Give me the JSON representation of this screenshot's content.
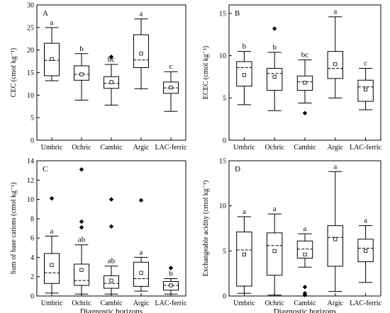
{
  "chart_data": [
    {
      "type": "box",
      "panel_label": "A",
      "ylabel": "CEC (cmol kg⁻¹)",
      "xlabel": "",
      "ylim": [
        0,
        30
      ],
      "yticks": [
        0,
        5,
        10,
        15,
        20,
        25,
        30
      ],
      "categories": [
        "Umbric",
        "Ochric",
        "Cambic",
        "Argic",
        "LAC-ferric"
      ],
      "boxes": [
        {
          "category": "Umbric",
          "whisker_low": 13.2,
          "q1": 14.3,
          "median": 17.7,
          "q3": 21.5,
          "whisker_high": 25.0,
          "mean": 18.0,
          "outliers": [],
          "letter": "a"
        },
        {
          "category": "Ochric",
          "whisker_low": 8.9,
          "q1": 13.3,
          "median": 14.6,
          "q3": 16.5,
          "whisker_high": 19.2,
          "mean": 14.6,
          "outliers": [],
          "letter": "b"
        },
        {
          "category": "Cambic",
          "whisker_low": 7.8,
          "q1": 11.5,
          "median": 12.6,
          "q3": 14.1,
          "whisker_high": 16.8,
          "mean": 12.9,
          "outliers": [
            18.5
          ],
          "letter": "bc"
        },
        {
          "category": "Argic",
          "whisker_low": 11.4,
          "q1": 16.1,
          "median": 17.8,
          "q3": 23.4,
          "whisker_high": 26.9,
          "mean": 19.2,
          "outliers": [],
          "letter": "a"
        },
        {
          "category": "LAC-ferric",
          "whisker_low": 6.4,
          "q1": 10.4,
          "median": 11.6,
          "q3": 12.9,
          "whisker_high": 15.2,
          "mean": 11.7,
          "outliers": [],
          "letter": "c"
        }
      ]
    },
    {
      "type": "box",
      "panel_label": "B",
      "ylabel": "ECEC (cmol kg⁻¹)",
      "xlabel": "",
      "ylim": [
        0,
        16
      ],
      "yticks": [
        0,
        5,
        10,
        15
      ],
      "categories": [
        "Umbric",
        "Ochric",
        "Cambic",
        "Argic",
        "LAC-ferric"
      ],
      "boxes": [
        {
          "category": "Umbric",
          "whisker_low": 4.2,
          "q1": 6.4,
          "median": 8.6,
          "q3": 9.3,
          "whisker_high": 10.5,
          "mean": 7.7,
          "outliers": [],
          "letter": "b"
        },
        {
          "category": "Ochric",
          "whisker_low": 3.5,
          "q1": 5.9,
          "median": 7.9,
          "q3": 8.5,
          "whisker_high": 10.4,
          "mean": 7.5,
          "outliers": [
            13.2
          ],
          "letter": "b"
        },
        {
          "category": "Cambic",
          "whisker_low": 4.4,
          "q1": 5.9,
          "median": 6.9,
          "q3": 7.6,
          "whisker_high": 9.5,
          "mean": 6.8,
          "outliers": [
            3.2
          ],
          "letter": "bc"
        },
        {
          "category": "Argic",
          "whisker_low": 5.0,
          "q1": 7.3,
          "median": 8.5,
          "q3": 10.5,
          "whisker_high": 14.6,
          "mean": 9.0,
          "outliers": [],
          "letter": "a"
        },
        {
          "category": "LAC-ferric",
          "whisker_low": 3.6,
          "q1": 4.6,
          "median": 6.3,
          "q3": 7.1,
          "whisker_high": 8.5,
          "mean": 6.0,
          "outliers": [],
          "letter": "c"
        }
      ]
    },
    {
      "type": "box",
      "panel_label": "C",
      "ylabel": "Sum of base cations (cmol kg⁻¹)",
      "xlabel": "Diagnostic horizons",
      "ylim": [
        0,
        14
      ],
      "yticks": [
        0,
        2,
        4,
        6,
        8,
        10,
        12,
        14
      ],
      "categories": [
        "Umbric",
        "Ochric",
        "Cambic",
        "Argic",
        "LAC-ferric"
      ],
      "boxes": [
        {
          "category": "Umbric",
          "whisker_low": 0.3,
          "q1": 1.3,
          "median": 2.4,
          "q3": 4.4,
          "whisker_high": 6.2,
          "mean": 3.2,
          "outliers": [
            10.1
          ],
          "letter": "a"
        },
        {
          "category": "Ochric",
          "whisker_low": 0.2,
          "q1": 1.1,
          "median": 1.6,
          "q3": 3.3,
          "whisker_high": 5.3,
          "mean": 2.7,
          "outliers": [
            7.1,
            7.7,
            13.1
          ],
          "letter": "ab"
        },
        {
          "category": "Cambic",
          "whisker_low": 0.2,
          "q1": 0.8,
          "median": 1.3,
          "q3": 2.1,
          "whisker_high": 3.1,
          "mean": 1.6,
          "outliers": [
            7.2,
            10.0
          ],
          "letter": "ab"
        },
        {
          "category": "Argic",
          "whisker_low": 0.5,
          "q1": 1.0,
          "median": 1.8,
          "q3": 3.5,
          "whisker_high": 4.0,
          "mean": 2.4,
          "outliers": [
            9.9
          ],
          "letter": "a"
        },
        {
          "category": "LAC-ferric",
          "whisker_low": 0.2,
          "q1": 0.6,
          "median": 1.1,
          "q3": 1.5,
          "whisker_high": 1.8,
          "mean": 1.1,
          "outliers": [
            2.9
          ],
          "letter": "b"
        }
      ]
    },
    {
      "type": "box",
      "panel_label": "D",
      "ylabel": "Exchangeable acidity (cmol kg⁻¹)",
      "xlabel": "Diagnostic horizons",
      "ylim": [
        0,
        15
      ],
      "yticks": [
        0,
        5,
        10,
        15
      ],
      "categories": [
        "Umbric",
        "Ochric",
        "Cambic",
        "Argic",
        "LAC-ferric"
      ],
      "boxes": [
        {
          "category": "Umbric",
          "whisker_low": 0.3,
          "q1": 1.1,
          "median": 5.1,
          "q3": 7.1,
          "whisker_high": 8.8,
          "mean": 4.6,
          "outliers": [],
          "letter": "a"
        },
        {
          "category": "Ochric",
          "whisker_low": 0.1,
          "q1": 2.3,
          "median": 5.6,
          "q3": 7.0,
          "whisker_high": 9.1,
          "mean": 5.0,
          "outliers": [],
          "letter": "a"
        },
        {
          "category": "Cambic",
          "whisker_low": 3.2,
          "q1": 4.2,
          "median": 5.2,
          "q3": 6.1,
          "whisker_high": 6.9,
          "mean": 4.6,
          "outliers": [
            1.0,
            0.3,
            0.1
          ],
          "letter": "a"
        },
        {
          "category": "Argic",
          "whisker_low": 0.5,
          "q1": 3.3,
          "median": 6.5,
          "q3": 7.8,
          "whisker_high": 13.8,
          "mean": 6.3,
          "outliers": [],
          "letter": "a"
        },
        {
          "category": "LAC-ferric",
          "whisker_low": 1.5,
          "q1": 3.8,
          "median": 5.3,
          "q3": 6.3,
          "whisker_high": 7.8,
          "mean": 5.0,
          "outliers": [],
          "letter": "a"
        }
      ]
    }
  ]
}
